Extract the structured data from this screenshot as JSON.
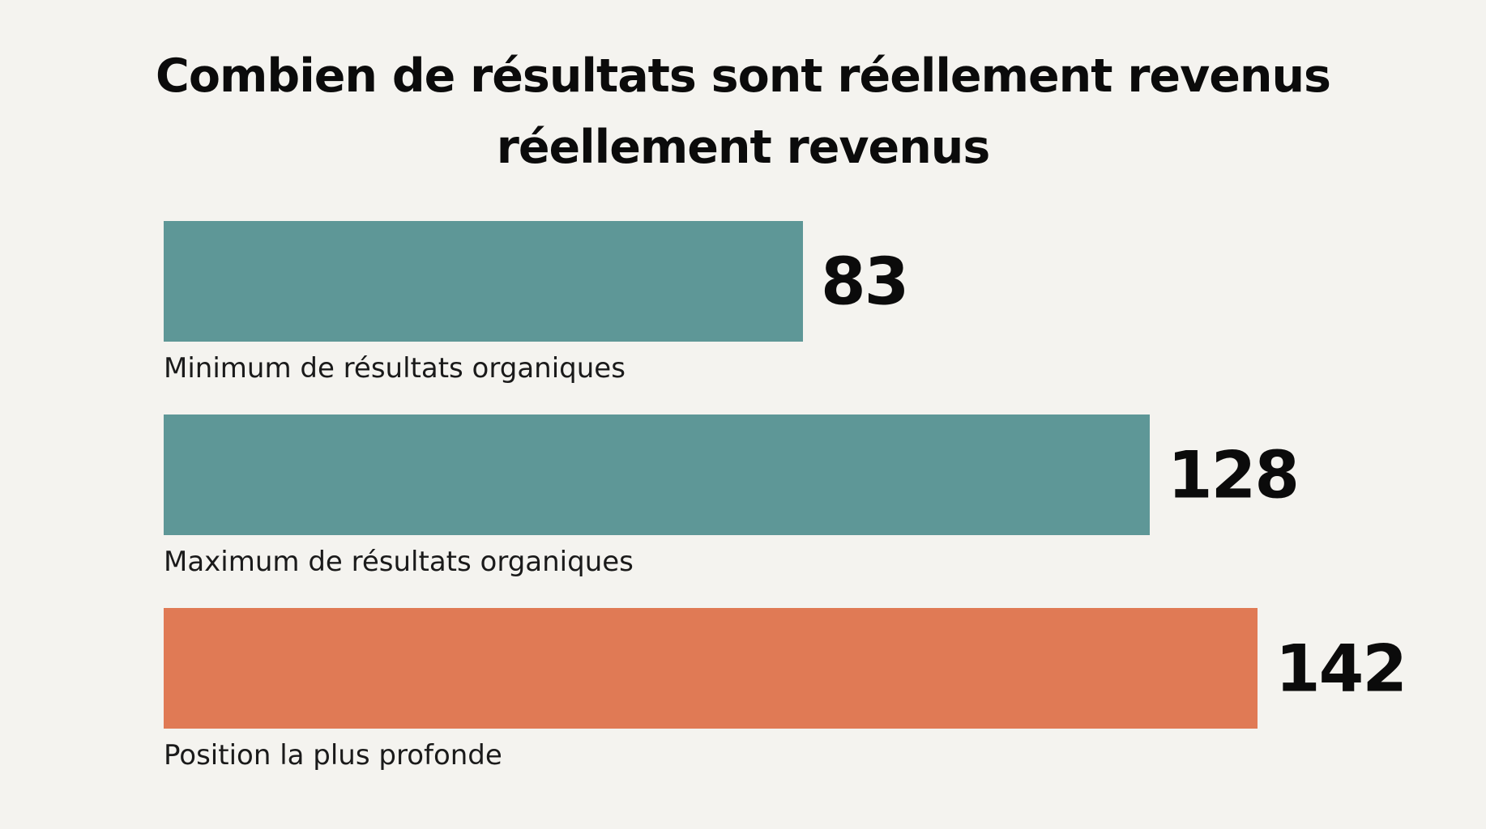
{
  "chart_data": {
    "type": "bar",
    "orientation": "horizontal",
    "title_lines": [
      "Combien de résultats sont réellement revenus",
      "réellement revenus"
    ],
    "categories": [
      "Minimum de résultats organiques",
      "Maximum de résultats organiques",
      "Position la plus profonde"
    ],
    "values": [
      83,
      128,
      142
    ],
    "colors": [
      "#5e9797",
      "#5e9797",
      "#e07a55"
    ],
    "xlim": [
      0,
      142
    ],
    "grid": false,
    "legend": "none"
  }
}
